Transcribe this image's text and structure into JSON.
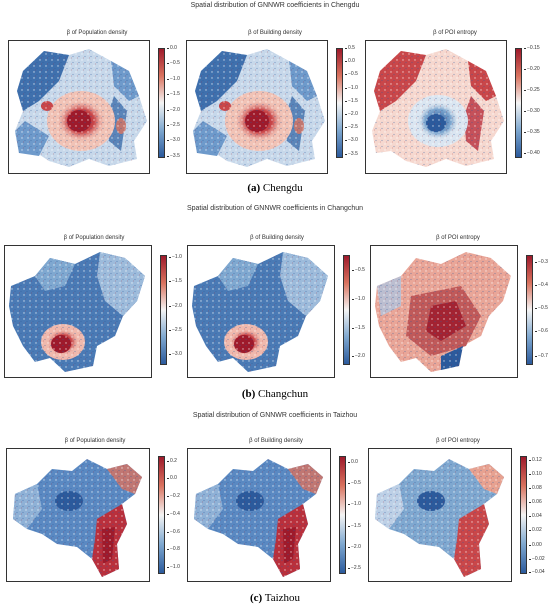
{
  "figures": [
    {
      "title": "Spatial distribution of GNNWR coefficients in Chengdu",
      "caption_letter": "(a)",
      "caption_name": "Chengdu",
      "panels": [
        {
          "title": "β of Population density",
          "ticks": [
            "0.0",
            "−0.5",
            "−1.0",
            "−1.5",
            "−2.0",
            "−2.5",
            "−3.0",
            "−3.5"
          ],
          "color_pattern": "center-red-core"
        },
        {
          "title": "β of Building density",
          "ticks": [
            "0.5",
            "0.0",
            "−0.5",
            "−1.0",
            "−1.5",
            "−2.0",
            "−2.5",
            "−3.0",
            "−3.5"
          ],
          "color_pattern": "center-red-core"
        },
        {
          "title": "β of POI entropy",
          "ticks": [
            "−0.15",
            "−0.20",
            "−0.25",
            "−0.30",
            "−0.35",
            "−0.40"
          ],
          "color_pattern": "center-blue-core"
        }
      ]
    },
    {
      "title": "Spatial distribution of GNNWR coefficients in Changchun",
      "caption_letter": "(b)",
      "caption_name": "Changchun",
      "panels": [
        {
          "title": "β of Population density",
          "ticks": [
            "−1.0",
            "−1.5",
            "−2.0",
            "−2.5",
            "−3.0"
          ],
          "color_pattern": "south-red-core"
        },
        {
          "title": "β of Building density",
          "ticks": [
            "−0.5",
            "−1.0",
            "−1.5",
            "−2.0"
          ],
          "color_pattern": "south-red-core"
        },
        {
          "title": "β of POI entropy",
          "ticks": [
            "−0.3",
            "−0.4",
            "−0.5",
            "−0.6",
            "−0.7"
          ],
          "color_pattern": "mostly-red"
        }
      ]
    },
    {
      "title": "Spatial distribution of GNNWR coefficients in Taizhou",
      "caption_letter": "(c)",
      "caption_name": "Taizhou",
      "panels": [
        {
          "title": "β of Population density",
          "ticks": [
            "0.2",
            "0.0",
            "−0.2",
            "−0.4",
            "−0.6",
            "−0.8",
            "−1.0"
          ],
          "color_pattern": "southeast-red"
        },
        {
          "title": "β of Building density",
          "ticks": [
            "0.0",
            "−0.5",
            "−1.0",
            "−1.5",
            "−2.0",
            "−2.5"
          ],
          "color_pattern": "southeast-red"
        },
        {
          "title": "β of POI entropy",
          "ticks": [
            "0.12",
            "0.10",
            "0.08",
            "0.06",
            "0.04",
            "0.02",
            "0.00",
            "−0.02",
            "−0.04"
          ],
          "color_pattern": "southeast-red-light"
        }
      ]
    }
  ],
  "colormap": {
    "low": "#2b5a9c",
    "mid": "#f4f4f4",
    "high": "#9e1a2b"
  }
}
